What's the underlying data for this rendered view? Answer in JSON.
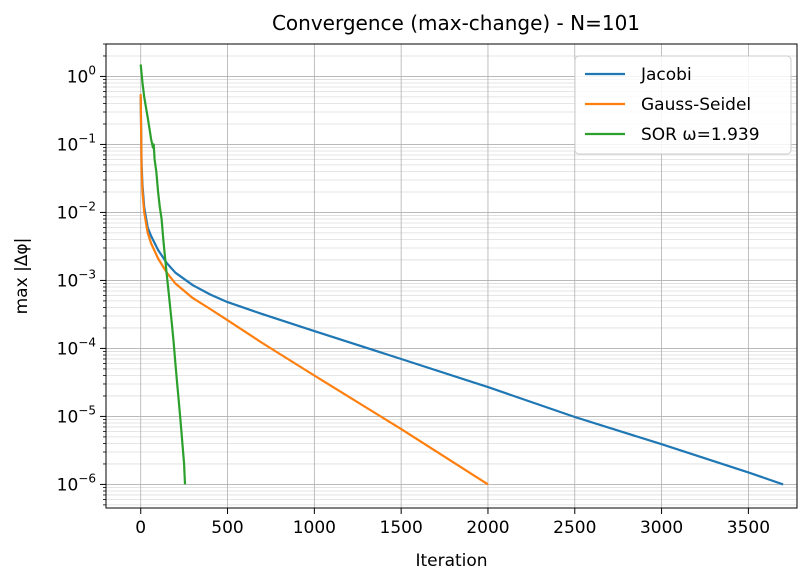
{
  "chart_data": {
    "type": "line",
    "title": "Convergence (max-change) - N=101",
    "xlabel": "Iteration",
    "ylabel": "max |Δφ|",
    "xlim": [
      -200,
      3780
    ],
    "ylim": [
      4.5e-07,
      3.0
    ],
    "yscale": "log",
    "grid": "major+minor",
    "legend_position": "top-right",
    "x_ticks": [
      0,
      500,
      1000,
      1500,
      2000,
      2500,
      3000,
      3500
    ],
    "y_ticks": [
      {
        "value": 1,
        "base": "10",
        "exp": "0"
      },
      {
        "value": 0.1,
        "base": "10",
        "exp": "−1"
      },
      {
        "value": 0.01,
        "base": "10",
        "exp": "−2"
      },
      {
        "value": 0.001,
        "base": "10",
        "exp": "−3"
      },
      {
        "value": 0.0001,
        "base": "10",
        "exp": "−4"
      },
      {
        "value": 1e-05,
        "base": "10",
        "exp": "−5"
      },
      {
        "value": 1e-06,
        "base": "10",
        "exp": "−6"
      }
    ],
    "series": [
      {
        "name": "Jacobi",
        "color": "#1f77b4",
        "x": [
          0,
          5,
          10,
          20,
          40,
          60,
          100,
          150,
          200,
          300,
          400,
          500,
          700,
          1000,
          1500,
          2000,
          2500,
          3000,
          3500,
          3700
        ],
        "y": [
          0.5,
          0.05,
          0.025,
          0.012,
          0.006,
          0.0045,
          0.0028,
          0.0018,
          0.0013,
          0.00085,
          0.00062,
          0.00048,
          0.00032,
          0.00018,
          7e-05,
          2.7e-05,
          9.8e-06,
          3.9e-06,
          1.5e-06,
          1e-06
        ]
      },
      {
        "name": "Gauss-Seidel",
        "color": "#ff7f0e",
        "x": [
          0,
          5,
          10,
          20,
          40,
          60,
          100,
          150,
          200,
          300,
          400,
          500,
          700,
          1000,
          1500,
          2000
        ],
        "y": [
          0.55,
          0.04,
          0.02,
          0.01,
          0.005,
          0.0035,
          0.0021,
          0.0013,
          0.0009,
          0.00055,
          0.00038,
          0.00026,
          0.00012,
          4e-05,
          6.5e-06,
          1e-06
        ]
      },
      {
        "name": "SOR ω=1.939",
        "color": "#2ca02c",
        "x": [
          0,
          10,
          20,
          40,
          60,
          70,
          75,
          80,
          90,
          100,
          110,
          120,
          130,
          140,
          150,
          160,
          170,
          180,
          190,
          200,
          210,
          220,
          230,
          240,
          250,
          255
        ],
        "y": [
          1.5,
          0.8,
          0.5,
          0.25,
          0.12,
          0.09,
          0.1,
          0.06,
          0.04,
          0.02,
          0.012,
          0.008,
          0.004,
          0.0022,
          0.0012,
          0.0007,
          0.0004,
          0.00022,
          0.00012,
          6e-05,
          3e-05,
          1.6e-05,
          8e-06,
          4e-06,
          2e-06,
          1e-06
        ]
      }
    ]
  }
}
